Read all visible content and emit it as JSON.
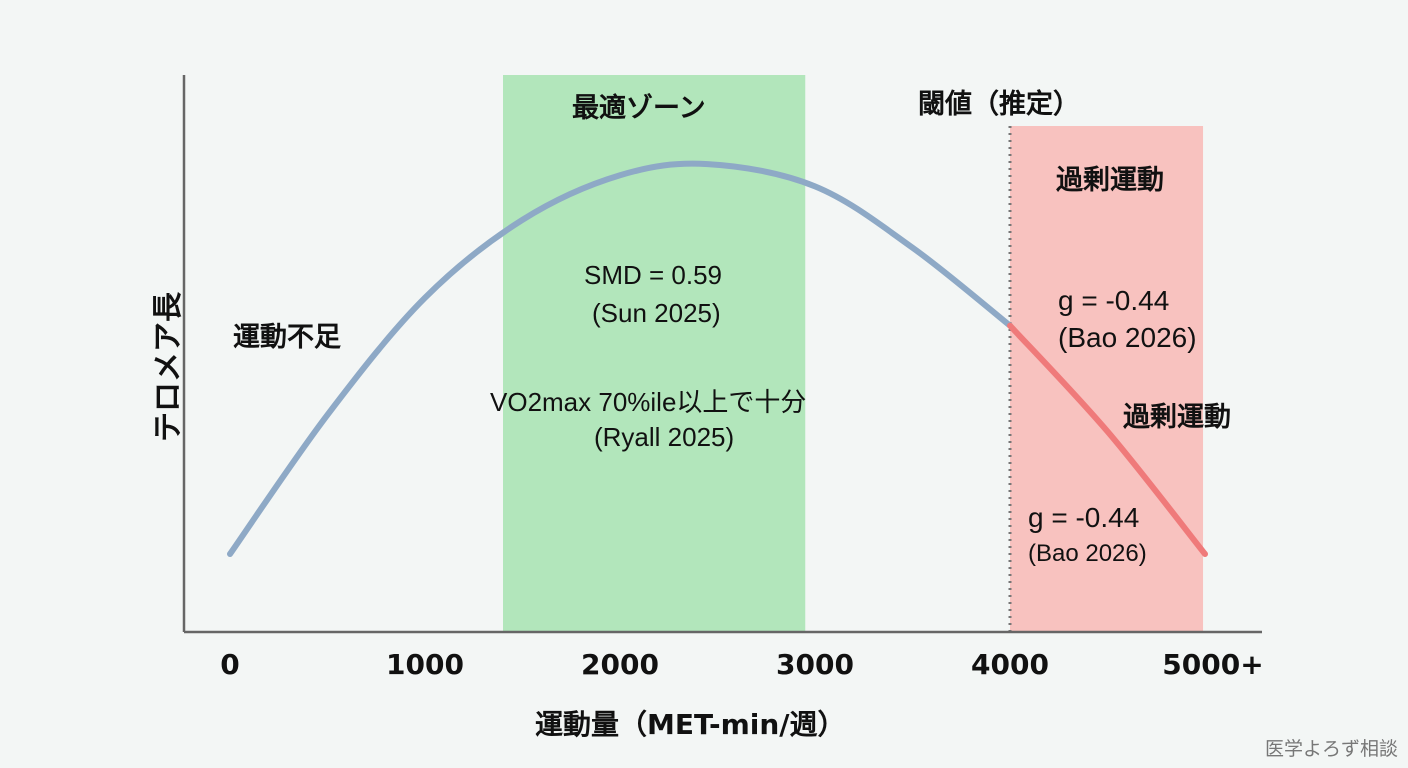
{
  "chart_data": {
    "type": "line",
    "title": "",
    "xlabel": "運動量（MET-min/週）",
    "ylabel": "テロメア長",
    "xlim": [
      0,
      5000
    ],
    "ylim": [
      0,
      100
    ],
    "x_ticks": [
      "0",
      "1000",
      "2000",
      "3000",
      "4000",
      "5000+"
    ],
    "x_tick_values": [
      0,
      1000,
      2000,
      3000,
      4000,
      5000
    ],
    "grid": false,
    "series": [
      {
        "x": [
          0,
          500,
          1000,
          1500,
          2000,
          2450,
          3000,
          3500,
          4000
        ],
        "y": [
          14,
          39,
          60,
          74,
          82,
          84,
          80,
          69,
          55
        ],
        "color": "#8ea9c6"
      },
      {
        "x": [
          4000,
          4500,
          5000
        ],
        "y": [
          55,
          36,
          14
        ],
        "color": "#ef7a7a"
      }
    ],
    "bands": [
      {
        "label": "最適ゾーン",
        "x": [
          1400,
          2950
        ],
        "color": "#b2e6bb"
      },
      {
        "label": "過剰運動",
        "x": [
          4000,
          4990
        ],
        "color": "#f8c2bf"
      }
    ],
    "threshold": {
      "label": "閾値（推定）",
      "x": 4000,
      "style": "dotted"
    },
    "annotations": {
      "insufficient": "運動不足",
      "smd": "SMD = 0.59",
      "smd_src": "(Sun 2025)",
      "vo2": "VO2max 70%ile以上で十分",
      "vo2_src": "(Ryall 2025)",
      "excess2": "過剰運動",
      "g1": "g = -0.44",
      "g1_src": "(Bao 2026)",
      "g2": "g = -0.44",
      "g2_src": "(Bao 2026)"
    }
  },
  "watermark": "医学よろず相談"
}
